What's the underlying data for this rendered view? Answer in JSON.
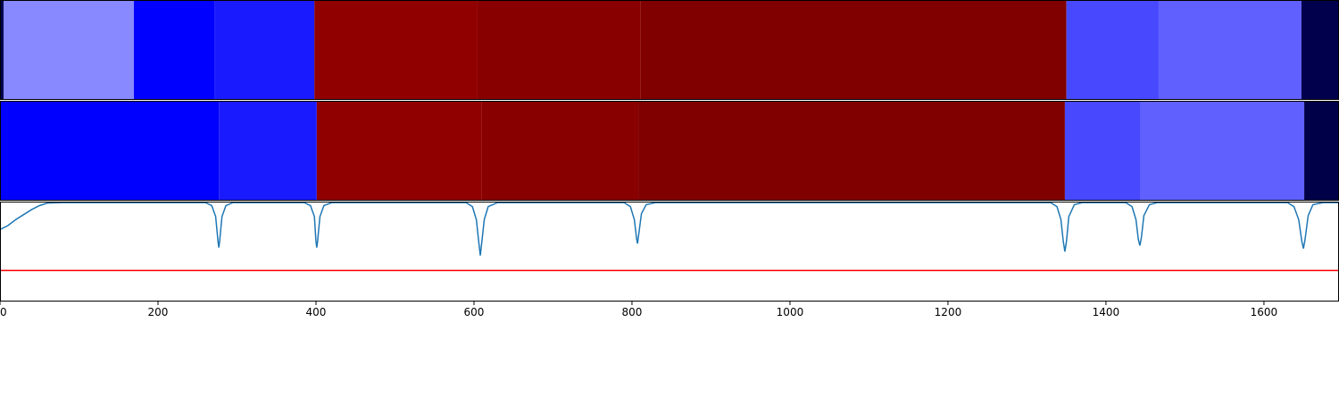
{
  "chart_data": {
    "type": "segmentation",
    "xlim": [
      0,
      1695
    ],
    "xticks": [
      0,
      200,
      400,
      600,
      800,
      1000,
      1200,
      1400,
      1600
    ],
    "ylim": [
      0,
      1
    ],
    "bands": [
      {
        "segments": [
          {
            "start": 0,
            "end": 4.5,
            "color": "#000050"
          },
          {
            "start": 4.5,
            "end": 169.5,
            "color": "#8888ff"
          },
          {
            "start": 169.5,
            "end": 272,
            "color": "#0000ff"
          },
          {
            "start": 272,
            "end": 398,
            "color": "#1a1aff"
          },
          {
            "start": 398,
            "end": 604.5,
            "color": "#900000"
          },
          {
            "start": 604.5,
            "end": 811,
            "color": "#880000"
          },
          {
            "start": 811,
            "end": 1350,
            "color": "#800000"
          },
          {
            "start": 1350,
            "end": 1466.7,
            "color": "#4848ff"
          },
          {
            "start": 1466.7,
            "end": 1647.5,
            "color": "#6060ff"
          },
          {
            "start": 1647.5,
            "end": 1695,
            "color": "#00004c"
          }
        ]
      },
      {
        "segments": [
          {
            "start": 0,
            "end": 277,
            "color": "#0000ff"
          },
          {
            "start": 277,
            "end": 401,
            "color": "#1a1aff"
          },
          {
            "start": 401,
            "end": 610,
            "color": "#900000"
          },
          {
            "start": 610,
            "end": 808,
            "color": "#880000"
          },
          {
            "start": 808,
            "end": 1348,
            "color": "#800000"
          },
          {
            "start": 1348,
            "end": 1443,
            "color": "#4848ff"
          },
          {
            "start": 1443,
            "end": 1651,
            "color": "#6060ff"
          },
          {
            "start": 1651,
            "end": 1695,
            "color": "#000048"
          }
        ]
      }
    ],
    "line": {
      "color": "#1f77b4",
      "x": [
        0,
        10,
        20,
        30,
        40,
        50,
        60,
        80,
        150,
        260,
        268,
        273,
        276,
        277,
        278,
        281,
        286,
        295,
        385,
        393,
        398,
        400,
        401,
        402,
        405,
        410,
        420,
        590,
        598,
        603,
        606,
        608,
        610,
        613,
        618,
        630,
        790,
        798,
        803,
        806,
        807,
        809,
        812,
        818,
        830,
        1330,
        1338,
        1343,
        1346,
        1348,
        1350,
        1353,
        1360,
        1370,
        1425,
        1433,
        1438,
        1441,
        1443,
        1445,
        1448,
        1455,
        1465,
        1630,
        1638,
        1644,
        1648,
        1650,
        1652,
        1656,
        1662,
        1675,
        1695
      ],
      "values": [
        0.72,
        0.76,
        0.82,
        0.87,
        0.92,
        0.96,
        0.985,
        0.99,
        0.99,
        0.99,
        0.96,
        0.85,
        0.6,
        0.54,
        0.6,
        0.85,
        0.96,
        0.99,
        0.99,
        0.96,
        0.85,
        0.6,
        0.54,
        0.6,
        0.85,
        0.96,
        0.99,
        0.99,
        0.95,
        0.82,
        0.6,
        0.46,
        0.6,
        0.82,
        0.95,
        0.99,
        0.99,
        0.95,
        0.82,
        0.62,
        0.58,
        0.7,
        0.88,
        0.97,
        0.99,
        0.99,
        0.95,
        0.82,
        0.6,
        0.5,
        0.6,
        0.85,
        0.97,
        0.99,
        0.99,
        0.95,
        0.82,
        0.62,
        0.56,
        0.65,
        0.86,
        0.97,
        0.99,
        0.99,
        0.95,
        0.82,
        0.6,
        0.53,
        0.62,
        0.86,
        0.97,
        0.99,
        0.99
      ]
    },
    "threshold": {
      "value": 0.31,
      "color": "#ff0000"
    }
  }
}
